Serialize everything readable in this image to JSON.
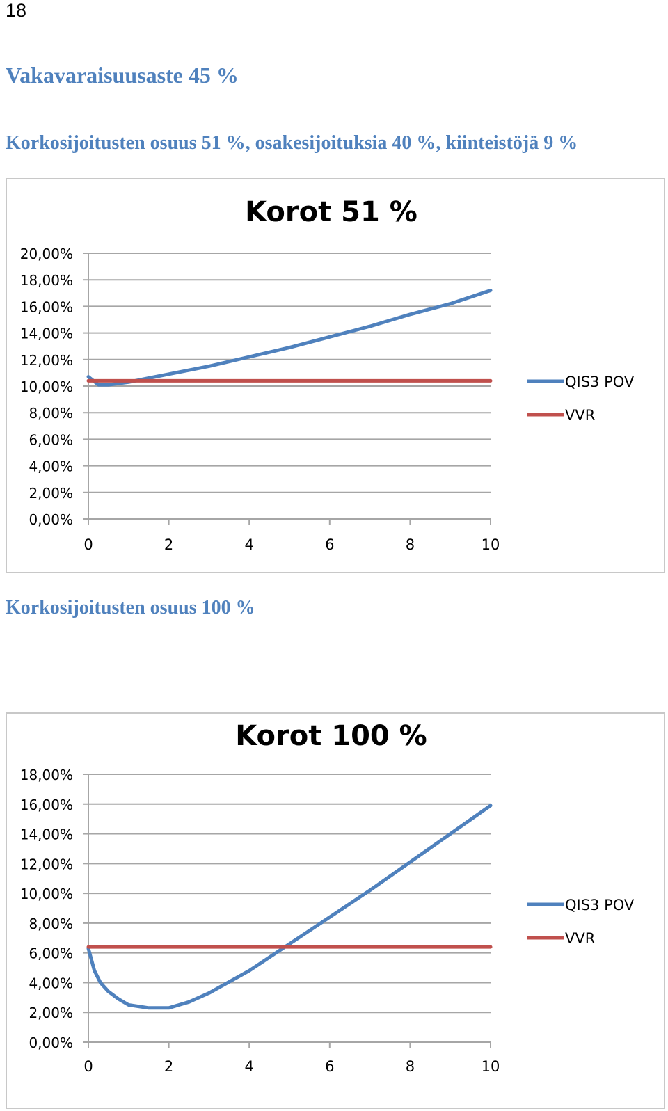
{
  "page": {
    "number": "18",
    "heading": "Vakavaraisuusaste 45 %",
    "subheading1": "Korkosijoitusten osuus 51 %, osakesijoituksia 40 %, kiinteistöjä 9 %",
    "subheading2": "Korkosijoitusten osuus 100 %"
  },
  "colors": {
    "qis3_pov": "#4f81bd",
    "vvr": "#c0504d",
    "grid": "#a6a6a6",
    "heading": "#4f81bd"
  },
  "chart_data": [
    {
      "type": "line",
      "title": "Korot 51 %",
      "xlim": [
        0,
        10
      ],
      "ylim": [
        0,
        20
      ],
      "x_ticks": [
        "0",
        "2",
        "4",
        "6",
        "8",
        "10"
      ],
      "y_ticks": [
        "0,00%",
        "2,00%",
        "4,00%",
        "6,00%",
        "8,00%",
        "10,00%",
        "12,00%",
        "14,00%",
        "16,00%",
        "18,00%",
        "20,00%"
      ],
      "y_tick_values": [
        0,
        2,
        4,
        6,
        8,
        10,
        12,
        14,
        16,
        18,
        20
      ],
      "grid": true,
      "legend": "right",
      "series": [
        {
          "name": "QIS3 POV",
          "color": "#4f81bd",
          "x": [
            0,
            0.25,
            0.5,
            1,
            1.5,
            2,
            3,
            4,
            5,
            6,
            7,
            8,
            9,
            10
          ],
          "y": [
            10.7,
            10.1,
            10.1,
            10.3,
            10.6,
            10.9,
            11.5,
            12.2,
            12.9,
            13.7,
            14.5,
            15.4,
            16.2,
            17.2
          ]
        },
        {
          "name": "VVR",
          "color": "#c0504d",
          "x": [
            0,
            10
          ],
          "y": [
            10.4,
            10.4
          ]
        }
      ]
    },
    {
      "type": "line",
      "title": "Korot 100 %",
      "xlim": [
        0,
        10
      ],
      "ylim": [
        0,
        18
      ],
      "x_ticks": [
        "0",
        "2",
        "4",
        "6",
        "8",
        "10"
      ],
      "y_ticks": [
        "0,00%",
        "2,00%",
        "4,00%",
        "6,00%",
        "8,00%",
        "10,00%",
        "12,00%",
        "14,00%",
        "16,00%",
        "18,00%"
      ],
      "y_tick_values": [
        0,
        2,
        4,
        6,
        8,
        10,
        12,
        14,
        16,
        18
      ],
      "grid": true,
      "legend": "right",
      "series": [
        {
          "name": "QIS3 POV",
          "color": "#4f81bd",
          "x": [
            0,
            0.15,
            0.3,
            0.5,
            0.75,
            1,
            1.5,
            2,
            2.5,
            3,
            4,
            5,
            6,
            7,
            8,
            9,
            10
          ],
          "y": [
            6.3,
            4.8,
            4.0,
            3.4,
            2.9,
            2.5,
            2.3,
            2.3,
            2.7,
            3.3,
            4.8,
            6.6,
            8.4,
            10.2,
            12.1,
            14.0,
            15.9
          ]
        },
        {
          "name": "VVR",
          "color": "#c0504d",
          "x": [
            0,
            10
          ],
          "y": [
            6.4,
            6.4
          ]
        }
      ]
    }
  ]
}
